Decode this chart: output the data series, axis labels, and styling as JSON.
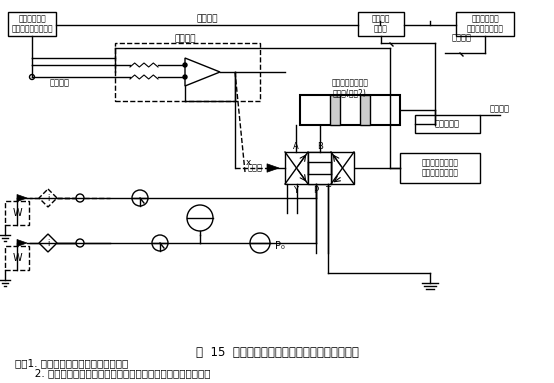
{
  "title": "图  15  四通电液比例方向阀典型的动态试验回路",
  "note1": "注：1. 本试验回路图中未表示截止阀。",
  "note2": "   2. 有必要增加低增益位置反馈回路来校正节流液压缸的漂移。",
  "bg_color": "#ffffff"
}
